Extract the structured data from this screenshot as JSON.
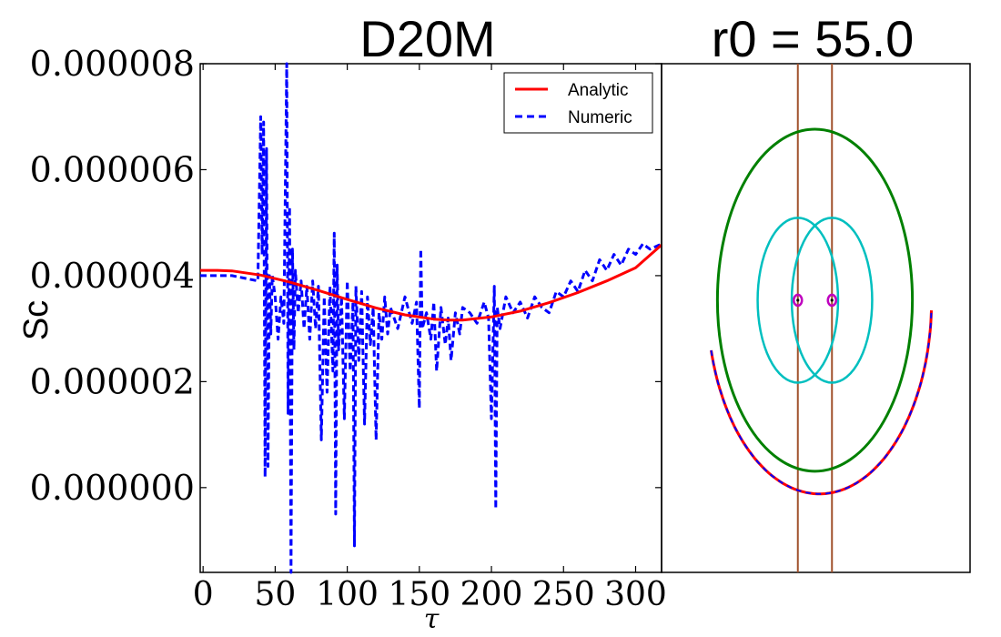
{
  "chart_data": [
    {
      "type": "line",
      "title": "D20M",
      "xlabel": "τ",
      "ylabel": "Sc",
      "xlim": [
        -2,
        318
      ],
      "ylim": [
        -1.6e-06,
        8e-06
      ],
      "x_ticks": [
        0,
        50,
        100,
        150,
        200,
        250,
        300
      ],
      "x_tick_labels": [
        "0",
        "50",
        "100",
        "150",
        "200",
        "250",
        "300"
      ],
      "y_ticks": [
        0.0,
        2e-06,
        4e-06,
        6e-06,
        8e-06
      ],
      "y_tick_labels": [
        "0.000000",
        "0.000002",
        "0.000004",
        "0.000006",
        "0.000008"
      ],
      "legend_position": "top-right",
      "series": [
        {
          "name": "Analytic",
          "color": "#ff0000",
          "style": "solid",
          "x": [
            -2,
            0,
            10,
            20,
            40,
            60,
            80,
            100,
            120,
            140,
            160,
            170,
            180,
            200,
            220,
            240,
            260,
            280,
            300,
            318
          ],
          "y": [
            4.1e-06,
            4.1e-06,
            4.1e-06,
            4.09e-06,
            4.01e-06,
            3.88e-06,
            3.72e-06,
            3.55e-06,
            3.39e-06,
            3.26e-06,
            3.18e-06,
            3.16e-06,
            3.16e-06,
            3.22e-06,
            3.33e-06,
            3.49e-06,
            3.68e-06,
            3.9e-06,
            4.15e-06,
            4.58e-06
          ]
        },
        {
          "name": "Numeric",
          "color": "#0000ff",
          "style": "dashed",
          "x": [
            -2,
            0,
            20,
            38,
            40,
            41,
            42,
            43,
            44,
            45,
            46,
            47,
            48,
            50,
            52,
            54,
            56,
            58,
            59,
            60,
            61,
            62,
            63,
            64,
            66,
            68,
            70,
            72,
            74,
            76,
            78,
            80,
            82,
            84,
            86,
            88,
            90,
            91,
            92,
            93,
            94,
            96,
            98,
            100,
            102,
            104,
            105,
            106,
            108,
            110,
            112,
            114,
            116,
            118,
            120,
            122,
            124,
            126,
            128,
            130,
            135,
            140,
            145,
            148,
            150,
            151,
            152,
            155,
            158,
            160,
            162,
            165,
            168,
            170,
            172,
            175,
            178,
            180,
            185,
            190,
            195,
            198,
            200,
            202,
            203,
            204,
            206,
            210,
            215,
            220,
            225,
            230,
            235,
            240,
            245,
            250,
            255,
            260,
            265,
            270,
            275,
            280,
            285,
            290,
            295,
            300,
            305,
            310,
            318
          ],
          "y": [
            4e-06,
            4e-06,
            4e-06,
            3.9e-06,
            7e-06,
            4.4e-06,
            6.9e-06,
            2e-07,
            6.4e-06,
            4e-07,
            4e-06,
            2.9e-06,
            4e-06,
            3.6e-06,
            2.8e-06,
            3.6e-06,
            3.1e-06,
            8e-06,
            1.4e-06,
            5.3e-06,
            -1.6e-06,
            4.5e-06,
            2.6e-06,
            4.1e-06,
            3.3e-06,
            3.9e-06,
            3e-06,
            3.8e-06,
            2.8e-06,
            3.9e-06,
            3e-06,
            3.8e-06,
            9e-07,
            3.6e-06,
            1.8e-06,
            3.8e-06,
            2.2e-06,
            4.8e-06,
            -5e-07,
            4.2e-06,
            2.6e-06,
            3.6e-06,
            1.3e-06,
            3.9e-06,
            2.2e-06,
            3.5e-06,
            -1.1e-06,
            3.8e-06,
            2.4e-06,
            3.7e-06,
            1.2e-06,
            3.6e-06,
            2.7e-06,
            3.4e-06,
            9e-07,
            3.3e-06,
            2.8e-06,
            3.6e-06,
            2.9e-06,
            3.4e-06,
            3e-06,
            3.6e-06,
            3.1e-06,
            3.5e-06,
            1.5e-06,
            4.5e-06,
            3e-06,
            3.3e-06,
            2.8e-06,
            3.5e-06,
            2.2e-06,
            3.4e-06,
            2.7e-06,
            3.2e-06,
            2.4e-06,
            3.3e-06,
            2.9e-06,
            3.4e-06,
            3.3e-06,
            3.1e-06,
            3.5e-06,
            3.2e-06,
            1.3e-06,
            3.8e-06,
            -4e-07,
            3.4e-06,
            3e-06,
            3.6e-06,
            3.3e-06,
            3.5e-06,
            3.2e-06,
            3.6e-06,
            3.4e-06,
            3.3e-06,
            3.7e-06,
            3.6e-06,
            3.9e-06,
            3.7e-06,
            4.1e-06,
            3.9e-06,
            4.3e-06,
            4.1e-06,
            4.4e-06,
            4.2e-06,
            4.5e-06,
            4.4e-06,
            4.6e-06,
            4.5e-06,
            4.6e-06
          ]
        }
      ]
    },
    {
      "type": "diagram",
      "title": "r0 = 55.0",
      "axes": "none",
      "xlim": [
        -100,
        100
      ],
      "ylim": [
        -100,
        100
      ],
      "colors": {
        "outer_ellipse": "#008000",
        "inner_ellipses": "#00bfbf",
        "vertical_lines": "#a0522d",
        "markers": "#bf00bf",
        "arc_analytic": "#ff0000",
        "arc_numeric": "#0000ff"
      },
      "outer_ellipse": {
        "cx": 0,
        "cy": 0,
        "rx": 80,
        "ry": 83
      },
      "inner_ellipses": [
        {
          "cx": -14,
          "cy": 0,
          "rx": 33,
          "ry": 40
        },
        {
          "cx": 14,
          "cy": 0,
          "rx": 33,
          "ry": 40
        }
      ],
      "vertical_lines_x": [
        -14,
        14
      ],
      "markers": [
        {
          "x": -14,
          "y": 0
        },
        {
          "x": 14,
          "y": 0
        }
      ],
      "arc": {
        "cx": 0,
        "cy": 0,
        "rx": 92,
        "ry": 94,
        "start_deg": 195,
        "end_deg": 358
      }
    }
  ]
}
